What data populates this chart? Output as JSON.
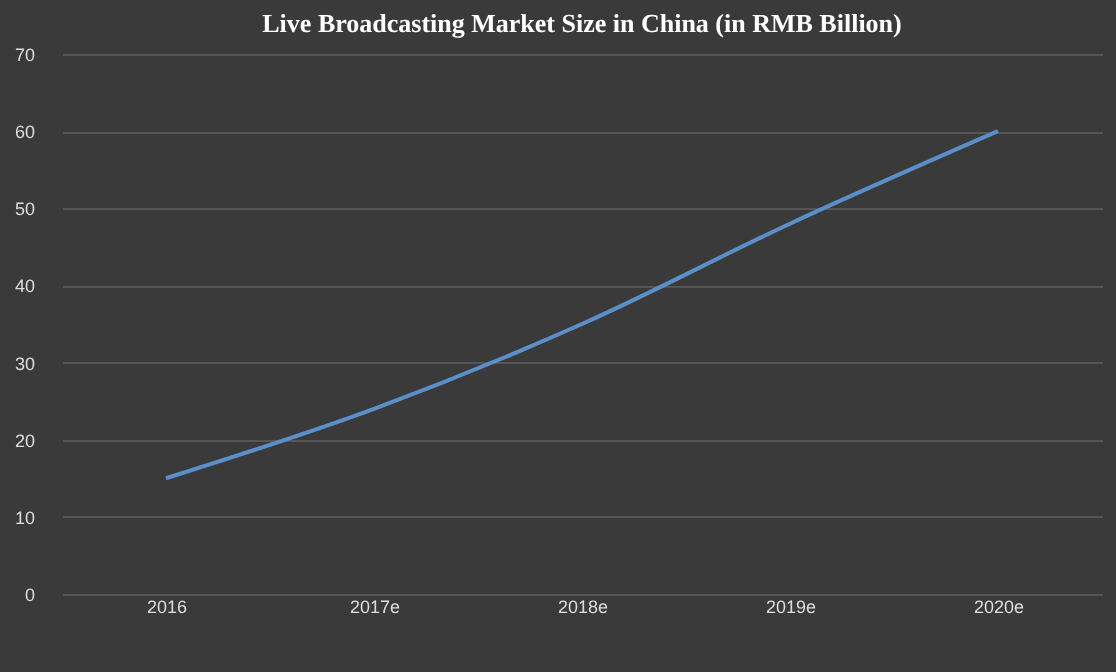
{
  "chart_data": {
    "type": "line",
    "title": "Live Broadcasting Market Size in China (in RMB Billion)",
    "categories": [
      "2016",
      "2017e",
      "2018e",
      "2019e",
      "2020e"
    ],
    "series": [
      {
        "color": "#5b8fc9",
        "values": [
          15,
          24,
          35,
          48,
          60
        ]
      }
    ],
    "ylim": [
      0,
      70
    ],
    "yticks": [
      0,
      10,
      20,
      30,
      40,
      50,
      60,
      70
    ],
    "grid": "y",
    "marker": "none",
    "line_style": "solid"
  }
}
